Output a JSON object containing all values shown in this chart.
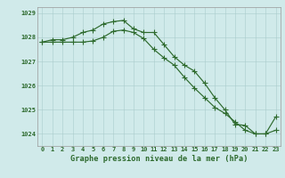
{
  "hours": [
    0,
    1,
    2,
    3,
    4,
    5,
    6,
    7,
    8,
    9,
    10,
    11,
    12,
    13,
    14,
    15,
    16,
    17,
    18,
    19,
    20,
    21,
    22,
    23
  ],
  "series1": [
    1027.8,
    1027.9,
    1027.9,
    1028.0,
    1028.2,
    1028.3,
    1028.55,
    1028.65,
    1028.7,
    1028.35,
    1028.2,
    1028.2,
    1027.7,
    1027.2,
    1026.85,
    1026.6,
    1026.1,
    1025.5,
    1025.0,
    1024.4,
    1024.35,
    1024.0,
    1024.0,
    1024.15
  ],
  "series2": [
    1027.8,
    1027.8,
    1027.8,
    1027.8,
    1027.8,
    1027.85,
    1028.0,
    1028.25,
    1028.3,
    1028.2,
    1027.95,
    1027.5,
    1027.15,
    1026.85,
    1026.35,
    1025.9,
    1025.5,
    1025.1,
    1024.85,
    1024.5,
    1024.15,
    1024.0,
    1024.0,
    1024.7
  ],
  "line_color": "#2d6a2d",
  "bg_color": "#d0eaea",
  "grid_color": "#aacccc",
  "label_color": "#2d6a2d",
  "xlabel": "Graphe pression niveau de la mer (hPa)",
  "ylim": [
    1023.5,
    1029.25
  ],
  "yticks": [
    1024,
    1025,
    1026,
    1027,
    1028,
    1029
  ],
  "xtick_labels": [
    "0",
    "1",
    "2",
    "3",
    "4",
    "5",
    "6",
    "7",
    "8",
    "9",
    "10",
    "11",
    "12",
    "13",
    "14",
    "15",
    "16",
    "17",
    "18",
    "19",
    "20",
    "21",
    "22",
    "23"
  ],
  "marker_size": 2.2,
  "line_width": 0.85,
  "tick_fontsize": 5.0,
  "xlabel_fontsize": 6.2
}
